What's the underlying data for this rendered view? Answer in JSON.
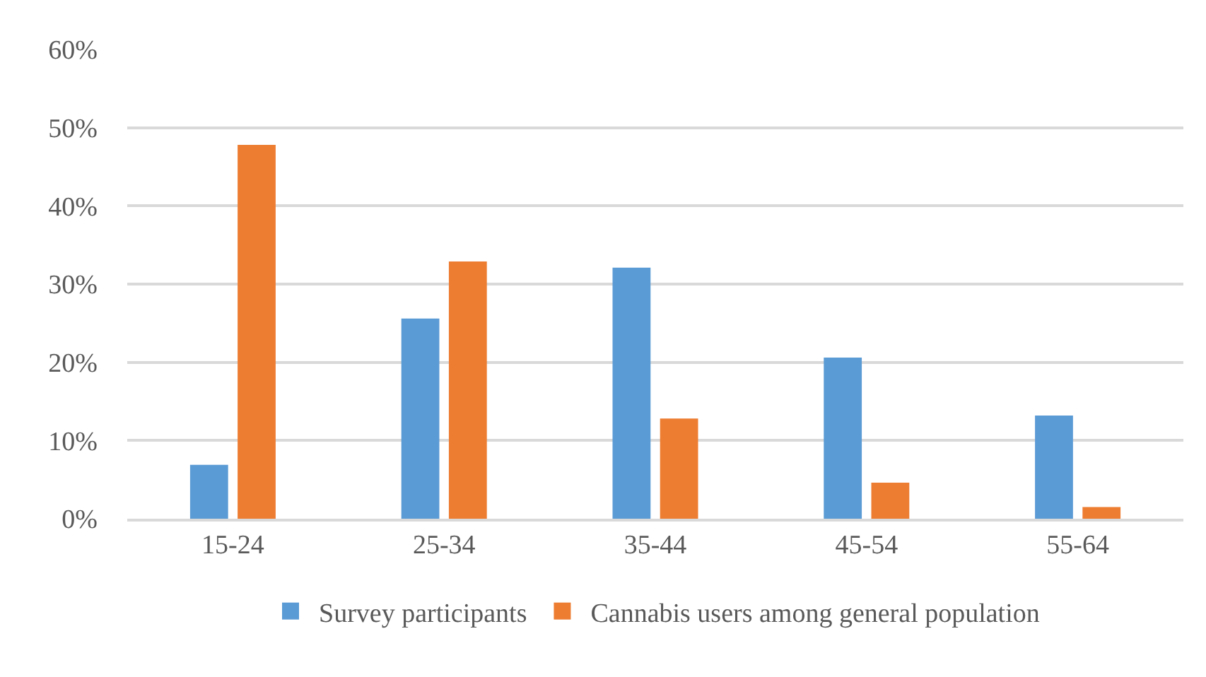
{
  "chart_data": {
    "type": "bar",
    "categories": [
      "15-24",
      "25-34",
      "35-44",
      "45-54",
      "55-64"
    ],
    "series": [
      {
        "name": "Survey participants",
        "color": "#5b9bd5",
        "values": [
          6.9,
          25.6,
          32.1,
          20.6,
          13.2
        ]
      },
      {
        "name": "Cannabis users among general population",
        "color": "#ed7d31",
        "values": [
          47.8,
          32.9,
          12.8,
          4.6,
          1.5
        ]
      }
    ],
    "ylim": [
      0,
      60
    ],
    "yticks": [
      {
        "value": 0,
        "label": "0%"
      },
      {
        "value": 10,
        "label": "10%"
      },
      {
        "value": 20,
        "label": "20%"
      },
      {
        "value": 30,
        "label": "30%"
      },
      {
        "value": 40,
        "label": "40%"
      },
      {
        "value": 50,
        "label": "50%"
      },
      {
        "value": 60,
        "label": "60%"
      }
    ],
    "grid": "y",
    "legend": "bottom"
  }
}
